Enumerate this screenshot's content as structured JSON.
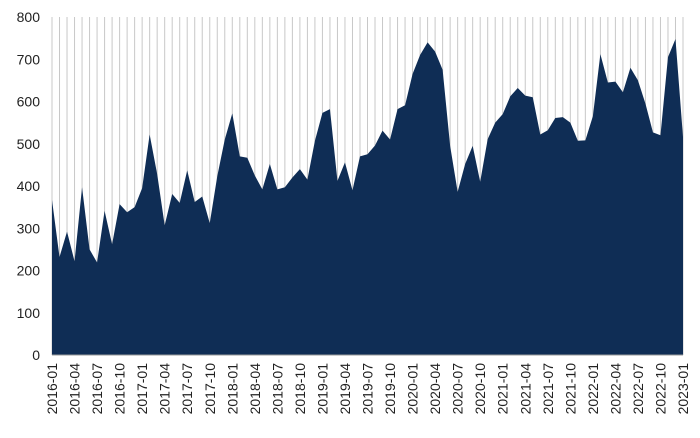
{
  "chart_data": {
    "type": "area",
    "title": "",
    "xlabel": "",
    "ylabel": "",
    "ylim": [
      0,
      800
    ],
    "y_ticks": [
      0,
      100,
      200,
      300,
      400,
      500,
      600,
      700,
      800
    ],
    "grid": "vertical lines at every month, horizontal line at 0 only",
    "x_tick_labels": [
      "2016-01",
      "2016-04",
      "2016-07",
      "2016-10",
      "2017-01",
      "2017-04",
      "2017-07",
      "2017-10",
      "2018-01",
      "2018-04",
      "2018-07",
      "2018-10",
      "2019-01",
      "2019-04",
      "2019-07",
      "2019-10",
      "2020-01",
      "2020-04",
      "2020-07",
      "2020-10",
      "2021-01",
      "2021-04",
      "2021-07",
      "2021-10",
      "2022-01",
      "2022-04",
      "2022-07",
      "2022-10",
      "2023-01"
    ],
    "fill_color": "#0f2d55",
    "x": [
      "2016-01",
      "2016-02",
      "2016-03",
      "2016-04",
      "2016-05",
      "2016-06",
      "2016-07",
      "2016-08",
      "2016-09",
      "2016-10",
      "2016-11",
      "2016-12",
      "2017-01",
      "2017-02",
      "2017-03",
      "2017-04",
      "2017-05",
      "2017-06",
      "2017-07",
      "2017-08",
      "2017-09",
      "2017-10",
      "2017-11",
      "2017-12",
      "2018-01",
      "2018-02",
      "2018-03",
      "2018-04",
      "2018-05",
      "2018-06",
      "2018-07",
      "2018-08",
      "2018-09",
      "2018-10",
      "2018-11",
      "2018-12",
      "2019-01",
      "2019-02",
      "2019-03",
      "2019-04",
      "2019-05",
      "2019-06",
      "2019-07",
      "2019-08",
      "2019-09",
      "2019-10",
      "2019-11",
      "2019-12",
      "2020-01",
      "2020-02",
      "2020-03",
      "2020-04",
      "2020-05",
      "2020-06",
      "2020-07",
      "2020-08",
      "2020-09",
      "2020-10",
      "2020-11",
      "2020-12",
      "2021-01",
      "2021-02",
      "2021-03",
      "2021-04",
      "2021-05",
      "2021-06",
      "2021-07",
      "2021-08",
      "2021-09",
      "2021-10",
      "2021-11",
      "2021-12",
      "2022-01",
      "2022-02",
      "2022-03",
      "2022-04",
      "2022-05",
      "2022-06",
      "2022-07",
      "2022-08",
      "2022-09",
      "2022-10",
      "2022-11",
      "2022-12",
      "2023-01"
    ],
    "values": [
      367,
      232,
      292,
      222,
      397,
      250,
      219,
      341,
      262,
      357,
      338,
      350,
      395,
      522,
      428,
      307,
      381,
      360,
      437,
      362,
      375,
      312,
      423,
      510,
      572,
      470,
      467,
      425,
      392,
      452,
      392,
      397,
      420,
      440,
      415,
      507,
      573,
      582,
      412,
      456,
      390,
      470,
      475,
      496,
      531,
      510,
      582,
      591,
      665,
      710,
      740,
      718,
      675,
      495,
      386,
      452,
      495,
      410,
      511,
      550,
      570,
      612,
      632,
      614,
      610,
      522,
      532,
      561,
      563,
      550,
      507,
      508,
      565,
      712,
      645,
      647,
      622,
      680,
      650,
      595,
      527,
      520,
      705,
      748,
      516
    ]
  }
}
